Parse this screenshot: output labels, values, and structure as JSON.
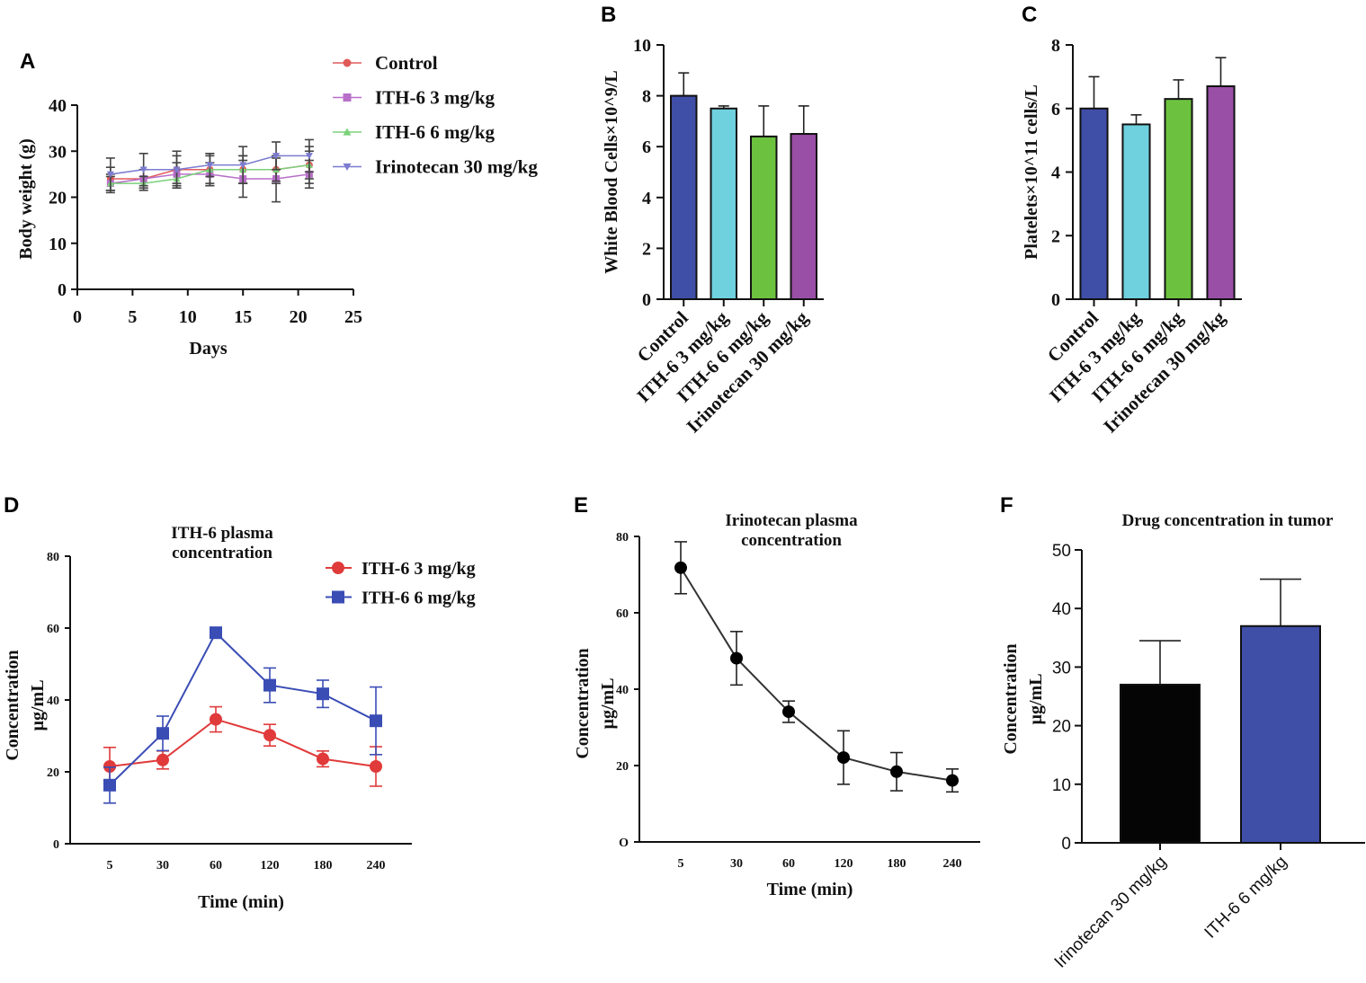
{
  "chart_data": [
    {
      "panel": "A",
      "type": "line",
      "title": "",
      "xlabel": "Days",
      "ylabel": "Body weight (g)",
      "xlim": [
        0,
        25
      ],
      "ylim": [
        0,
        40
      ],
      "xticks": [
        "0",
        "5",
        "10",
        "15",
        "20",
        "25"
      ],
      "yticks": [
        "0",
        "10",
        "20",
        "30",
        "40"
      ],
      "x": [
        3,
        6,
        9,
        12,
        15,
        18,
        21
      ],
      "series": [
        {
          "name": "Control",
          "color": "#e05a5a",
          "marker": "circle",
          "values": [
            24,
            24,
            26,
            26,
            26,
            26,
            27
          ],
          "errors": [
            2.5,
            2,
            3,
            3.5,
            3,
            3,
            4
          ]
        },
        {
          "name": "ITH-6 3 mg/kg",
          "color": "#b86fc9",
          "marker": "square",
          "values": [
            23,
            24,
            25,
            25,
            24,
            24,
            25
          ],
          "errors": [
            2,
            2,
            2.5,
            2.5,
            4,
            5,
            3
          ]
        },
        {
          "name": "ITH-6 6 mg/kg",
          "color": "#7bd17a",
          "marker": "triangle-up",
          "values": [
            23,
            23,
            24,
            26,
            26,
            26,
            27
          ],
          "errors": [
            1.5,
            1.5,
            2,
            3,
            3,
            2.5,
            3
          ]
        },
        {
          "name": "Irinotecan 30 mg/kg",
          "color": "#7b7bd1",
          "marker": "triangle-down",
          "values": [
            25,
            26,
            26,
            27,
            27,
            29,
            29
          ],
          "errors": [
            3.5,
            3.5,
            4,
            2.5,
            4,
            3,
            3.5
          ]
        }
      ],
      "legend": "right"
    },
    {
      "panel": "B",
      "type": "bar",
      "ylabel": "White Blood Cells×10^9/L",
      "ylim": [
        0,
        10
      ],
      "yticks": [
        "0",
        "2",
        "4",
        "6",
        "8",
        "10"
      ],
      "categories": [
        "Control",
        "ITH-6 3 mg/kg",
        "ITH-6 6 mg/kg",
        "Irinotecan 30 mg/kg"
      ],
      "values": [
        8.0,
        7.5,
        6.4,
        6.5
      ],
      "errors": [
        0.9,
        0.1,
        1.2,
        1.1
      ],
      "colors": [
        "#3f4ea6",
        "#6fd0de",
        "#6cc23f",
        "#9a4fa6"
      ]
    },
    {
      "panel": "C",
      "type": "bar",
      "ylabel": "Platelets×10^11 cells/L",
      "ylim": [
        0,
        8
      ],
      "yticks": [
        "0",
        "2",
        "4",
        "6",
        "8"
      ],
      "categories": [
        "Control",
        "ITH-6 3 mg/kg",
        "ITH-6 6 mg/kg",
        "Irinotecan 30 mg/kg"
      ],
      "values": [
        6.0,
        5.5,
        6.3,
        6.7
      ],
      "errors": [
        1.0,
        0.3,
        0.6,
        0.9
      ],
      "colors": [
        "#3f4ea6",
        "#6fd0de",
        "#6cc23f",
        "#9a4fa6"
      ]
    },
    {
      "panel": "D",
      "type": "line",
      "title": "ITH-6 plasma concentration",
      "title_lines": [
        "ITH-6 plasma",
        "concentration"
      ],
      "xlabel": "Time (min)",
      "ylabel_lines": [
        "Concentration",
        "µg/mL"
      ],
      "ylim": [
        0,
        80
      ],
      "yticks": [
        "0",
        "20",
        "40",
        "60",
        "80"
      ],
      "categories": [
        "5",
        "30",
        "60",
        "120",
        "180",
        "240"
      ],
      "series": [
        {
          "name": "ITH-6 3 mg/kg",
          "color": "#e03a3a",
          "marker": "circle",
          "values": [
            21.5,
            23.3,
            34.6,
            30.2,
            23.6,
            21.5
          ],
          "errors": [
            5.3,
            2.5,
            3.5,
            3,
            2.2,
            5.5
          ]
        },
        {
          "name": "ITH-6 6 mg/kg",
          "color": "#3a4db5",
          "marker": "square",
          "values": [
            16.3,
            30.7,
            58.7,
            44.1,
            41.7,
            34.2
          ],
          "errors": [
            5,
            4.8,
            1.5,
            4.8,
            3.8,
            9.4
          ]
        }
      ],
      "legend": "top-right"
    },
    {
      "panel": "E",
      "type": "line",
      "title": "Irinotecan plasma concentration",
      "title_lines": [
        "Irinotecan plasma",
        "concentration"
      ],
      "xlabel": "Time (min)",
      "ylabel_lines": [
        "Concentration",
        "µg/mL"
      ],
      "ylim": [
        0,
        80
      ],
      "yticks": [
        "O",
        "20",
        "40",
        "60",
        "80"
      ],
      "categories": [
        "5",
        "30",
        "60",
        "120",
        "180",
        "240"
      ],
      "series": [
        {
          "name": "Irinotecan",
          "color": "#000000",
          "marker": "circle",
          "values": [
            71.8,
            48.1,
            34.1,
            22.1,
            18.4,
            16.1
          ],
          "errors": [
            6.8,
            7,
            2.8,
            7,
            5,
            3
          ]
        }
      ]
    },
    {
      "panel": "F",
      "type": "bar",
      "title": "Drug concentration in tumor",
      "ylabel_lines": [
        "Concentration",
        "µg/mL"
      ],
      "ylim": [
        0,
        50
      ],
      "yticks": [
        "0",
        "10",
        "20",
        "30",
        "40",
        "50"
      ],
      "categories": [
        "Irinotecan 30 mg/kg",
        "ITH-6 6 mg/kg"
      ],
      "values": [
        27.0,
        37.0
      ],
      "errors": [
        7.5,
        8.0
      ],
      "colors": [
        "#050505",
        "#3f4ea6"
      ]
    }
  ]
}
